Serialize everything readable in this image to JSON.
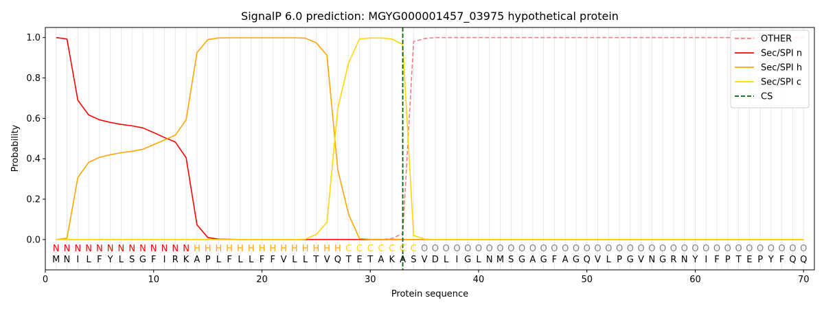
{
  "chart_data": {
    "type": "line",
    "title": "SignalP 6.0 prediction: MGYG000001457_03975 hypothetical protein",
    "xlabel": "Protein sequence",
    "ylabel": "Probability",
    "xlim": [
      0,
      71
    ],
    "ylim": [
      -0.15,
      1.05
    ],
    "xticks": [
      0,
      10,
      20,
      30,
      40,
      50,
      60,
      70
    ],
    "yticks": [
      0.0,
      0.2,
      0.4,
      0.6,
      0.8,
      1.0
    ],
    "xtick_labels": [
      "0",
      "10",
      "20",
      "30",
      "40",
      "50",
      "60",
      "70"
    ],
    "ytick_labels": [
      "0.0",
      "0.2",
      "0.4",
      "0.6",
      "0.8",
      "1.0"
    ],
    "grid": "vertical",
    "legend_position": "top-right",
    "sequence": "MNILFYLSGFIRKAPLFLLFFVLLTVQTETAKASVDLIGLNMSGAGFAGQVLPGVNGRNYIFPTEPYFQQ",
    "region_labels": "NNNNNNNNNNNNNHHHHHHHHHHHHHHCCCCCCCOOOOOOOOOOOOOOOOOOOOOOOOOOOOOOOOOOOOO",
    "region_colors": {
      "N": "#ff0000",
      "H": "#ffa500",
      "C": "#ffd700",
      "O": "#808080"
    },
    "cleavage_site": 33,
    "series": [
      {
        "name": "OTHER",
        "color": "#f08080",
        "dash": true,
        "values": [
          0,
          0,
          0,
          0,
          0,
          0,
          0,
          0,
          0,
          0,
          0,
          0,
          0,
          0,
          0,
          0,
          0,
          0,
          0,
          0,
          0,
          0,
          0,
          0,
          0,
          0,
          0,
          0,
          0,
          0,
          0,
          0.005,
          0.03,
          0.98,
          0.995,
          1,
          1,
          1,
          1,
          1,
          1,
          1,
          1,
          1,
          1,
          1,
          1,
          1,
          1,
          1,
          1,
          1,
          1,
          1,
          1,
          1,
          1,
          1,
          1,
          1,
          1,
          1,
          1,
          1,
          1,
          1,
          1,
          1,
          1,
          1
        ]
      },
      {
        "name": "Sec/SPI n",
        "color": "#ff0000",
        "dash": false,
        "values": [
          1.0,
          0.993,
          0.69,
          0.617,
          0.593,
          0.58,
          0.57,
          0.563,
          0.553,
          0.53,
          0.505,
          0.483,
          0.405,
          0.073,
          0.01,
          0.002,
          0.001,
          0,
          0,
          0,
          0,
          0,
          0,
          0,
          0,
          0,
          0,
          0,
          0,
          0,
          0,
          0,
          0,
          0,
          0,
          0,
          0,
          0,
          0,
          0,
          0,
          0,
          0,
          0,
          0,
          0,
          0,
          0,
          0,
          0,
          0,
          0,
          0,
          0,
          0,
          0,
          0,
          0,
          0,
          0,
          0,
          0,
          0,
          0,
          0,
          0,
          0,
          0,
          0,
          0
        ]
      },
      {
        "name": "Sec/SPI h",
        "color": "#ffa500",
        "dash": false,
        "values": [
          0,
          0.007,
          0.307,
          0.382,
          0.407,
          0.42,
          0.43,
          0.437,
          0.447,
          0.47,
          0.493,
          0.517,
          0.593,
          0.925,
          0.99,
          0.998,
          0.999,
          0.999,
          0.999,
          0.999,
          0.999,
          0.999,
          0.999,
          0.997,
          0.975,
          0.912,
          0.345,
          0.125,
          0.005,
          0.001,
          0.001,
          0.001,
          0.001,
          0,
          0,
          0,
          0,
          0,
          0,
          0,
          0,
          0,
          0,
          0,
          0,
          0,
          0,
          0,
          0,
          0,
          0,
          0,
          0,
          0,
          0,
          0,
          0,
          0,
          0,
          0,
          0,
          0,
          0,
          0,
          0,
          0,
          0,
          0,
          0,
          0
        ]
      },
      {
        "name": "Sec/SPI c",
        "color": "#ffd700",
        "dash": false,
        "values": [
          0,
          0,
          0,
          0,
          0,
          0,
          0,
          0,
          0,
          0,
          0,
          0,
          0,
          0,
          0,
          0,
          0,
          0,
          0,
          0,
          0,
          0,
          0,
          0.002,
          0.025,
          0.085,
          0.65,
          0.875,
          0.993,
          0.998,
          0.998,
          0.993,
          0.965,
          0.02,
          0.003,
          0,
          0,
          0,
          0,
          0,
          0,
          0,
          0,
          0,
          0,
          0,
          0,
          0,
          0,
          0,
          0,
          0,
          0,
          0,
          0,
          0,
          0,
          0,
          0,
          0,
          0,
          0,
          0,
          0,
          0,
          0,
          0,
          0,
          0,
          0
        ]
      },
      {
        "name": "CS",
        "color": "#006400",
        "dash": true,
        "vertical_at": 33
      }
    ]
  }
}
